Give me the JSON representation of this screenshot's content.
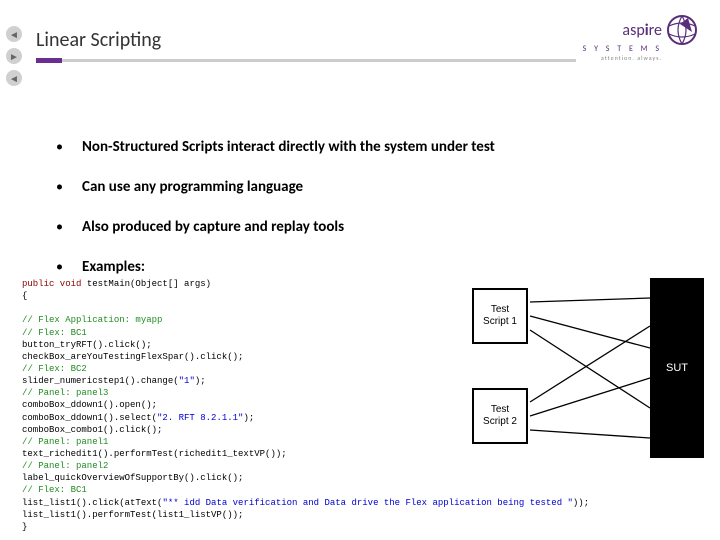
{
  "title": "Linear Scripting",
  "logo": {
    "brand_prefix": "asp",
    "brand_suffix": "re",
    "systems": "S Y S T E M S",
    "tagline": "attention. always.",
    "purple": "#5a2d7a"
  },
  "bullets": [
    "Non-Structured Scripts interact directly with the system under test",
    "Can use any programming language",
    "Also produced by capture and replay tools",
    "Examples:"
  ],
  "code": {
    "lines": [
      {
        "type": "plain",
        "pre": "",
        "kw": "public void",
        "post": " testMain(Object[] args)"
      },
      {
        "type": "plain",
        "pre": "{",
        "kw": "",
        "post": ""
      },
      {
        "type": "blank"
      },
      {
        "type": "comment",
        "text": "   // Flex Application: myapp"
      },
      {
        "type": "comment",
        "text": "   // Flex: BC1"
      },
      {
        "type": "plain",
        "pre": "   button_tryRFT().click();",
        "kw": "",
        "post": ""
      },
      {
        "type": "plain",
        "pre": "   checkBox_areYouTestingFlexSpar().click();",
        "kw": "",
        "post": ""
      },
      {
        "type": "comment",
        "text": "   // Flex: BC2"
      },
      {
        "type": "str",
        "pre": "   slider_numericstep1().change(",
        "str": "\"1\"",
        "post": ");"
      },
      {
        "type": "comment",
        "text": "   // Panel: panel3"
      },
      {
        "type": "plain",
        "pre": "   comboBox_ddown1().open();",
        "kw": "",
        "post": ""
      },
      {
        "type": "str",
        "pre": "   comboBox_ddown1().select(",
        "str": "\"2. RFT 8.2.1.1\"",
        "post": ");"
      },
      {
        "type": "plain",
        "pre": "   comboBox_combo1().click();",
        "kw": "",
        "post": ""
      },
      {
        "type": "comment",
        "text": "   // Panel: panel1"
      },
      {
        "type": "plain",
        "pre": "   text_richedit1().performTest(richedit1_textVP());",
        "kw": "",
        "post": ""
      },
      {
        "type": "comment",
        "text": "   // Panel: panel2"
      },
      {
        "type": "plain",
        "pre": "   label_quickOverviewOfSupportBy().click();",
        "kw": "",
        "post": ""
      },
      {
        "type": "comment",
        "text": "   // Flex: BC1"
      },
      {
        "type": "str",
        "pre": "   list_list1().click(atText(",
        "str": "\"** idd Data verification and Data drive the Flex application being tested \"",
        "post": "));"
      },
      {
        "type": "plain",
        "pre": "   list_list1().performTest(list1_listVP());",
        "kw": "",
        "post": ""
      },
      {
        "type": "plain",
        "pre": "}",
        "kw": "",
        "post": ""
      }
    ]
  },
  "diagram": {
    "script1": "Test\nScript 1",
    "script2": "Test\nScript 2",
    "sut": "SUT",
    "box_border": "#000000",
    "sut_bg": "#000000"
  },
  "colors": {
    "title_purple_bar": "#6b2d8f",
    "title_gray_bar": "#cccccc"
  }
}
